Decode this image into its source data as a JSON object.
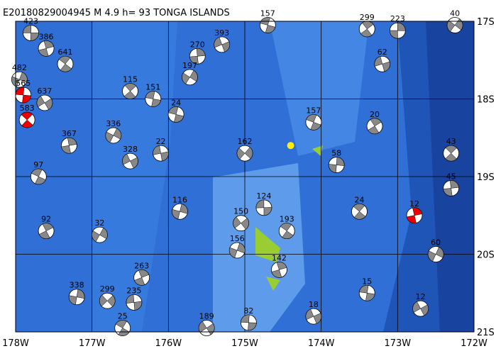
{
  "map": {
    "title": "E20180829004945 M 4.9 h= 93 TONGA ISLANDS",
    "lonlim": [
      -178,
      -172
    ],
    "latlim": [
      -21,
      -17
    ],
    "lonticks": [
      {
        "value": -178,
        "label": "178W"
      },
      {
        "value": -177,
        "label": "177W"
      },
      {
        "value": -176,
        "label": "176W"
      },
      {
        "value": -175,
        "label": "175W"
      },
      {
        "value": -174,
        "label": "174W"
      },
      {
        "value": -173,
        "label": "173W"
      },
      {
        "value": -172,
        "label": "172W"
      }
    ],
    "latticks": [
      {
        "value": -17,
        "label": "17S"
      },
      {
        "value": -18,
        "label": "18S"
      },
      {
        "value": -19,
        "label": "19S"
      },
      {
        "value": -20,
        "label": "20S"
      },
      {
        "value": -21,
        "label": "21S"
      }
    ],
    "epicenter": {
      "lon": -174.4,
      "lat": -18.6,
      "color": "#ffee00"
    },
    "events": [
      {
        "lon": -177.8,
        "lat": -17.15,
        "depth": "423",
        "color": "#888888"
      },
      {
        "lon": -177.35,
        "lat": -17.55,
        "depth": "641",
        "color": "#888888"
      },
      {
        "lon": -177.6,
        "lat": -17.35,
        "depth": "386",
        "color": "#888888"
      },
      {
        "lon": -177.95,
        "lat": -17.75,
        "depth": "482",
        "color": "#888888"
      },
      {
        "lon": -177.62,
        "lat": -18.05,
        "depth": "637",
        "color": "#888888"
      },
      {
        "lon": -177.9,
        "lat": -17.95,
        "depth": "565",
        "color": "#ee0000"
      },
      {
        "lon": -177.85,
        "lat": -18.27,
        "depth": "583",
        "color": "#ee0000"
      },
      {
        "lon": -177.3,
        "lat": -18.6,
        "depth": "367",
        "color": "#888888"
      },
      {
        "lon": -176.72,
        "lat": -18.47,
        "depth": "336",
        "color": "#888888"
      },
      {
        "lon": -176.5,
        "lat": -18.8,
        "depth": "328",
        "color": "#888888"
      },
      {
        "lon": -176.2,
        "lat": -18.0,
        "depth": "151",
        "color": "#888888"
      },
      {
        "lon": -176.5,
        "lat": -17.9,
        "depth": "115",
        "color": "#888888"
      },
      {
        "lon": -175.62,
        "lat": -17.45,
        "depth": "270",
        "color": "#888888"
      },
      {
        "lon": -175.72,
        "lat": -17.72,
        "depth": "197",
        "color": "#888888"
      },
      {
        "lon": -175.3,
        "lat": -17.3,
        "depth": "393",
        "color": "#888888"
      },
      {
        "lon": -174.7,
        "lat": -17.05,
        "depth": "157",
        "color": "#888888"
      },
      {
        "lon": -173.4,
        "lat": -17.1,
        "depth": "299",
        "color": "#888888"
      },
      {
        "lon": -173.0,
        "lat": -17.12,
        "depth": "223",
        "color": "#888888"
      },
      {
        "lon": -172.25,
        "lat": -17.05,
        "depth": "40",
        "color": "#888888"
      },
      {
        "lon": -173.2,
        "lat": -17.55,
        "depth": "62",
        "color": "#888888"
      },
      {
        "lon": -174.1,
        "lat": -18.3,
        "depth": "157",
        "color": "#888888"
      },
      {
        "lon": -173.3,
        "lat": -18.35,
        "depth": "20",
        "color": "#888888"
      },
      {
        "lon": -173.8,
        "lat": -18.85,
        "depth": "58",
        "color": "#888888"
      },
      {
        "lon": -175.0,
        "lat": -18.7,
        "depth": "162",
        "color": "#888888"
      },
      {
        "lon": -176.1,
        "lat": -18.7,
        "depth": "22",
        "color": "#888888"
      },
      {
        "lon": -177.7,
        "lat": -19.0,
        "depth": "97",
        "color": "#888888"
      },
      {
        "lon": -177.6,
        "lat": -19.7,
        "depth": "92",
        "color": "#888888"
      },
      {
        "lon": -177.2,
        "lat": -20.55,
        "depth": "338",
        "color": "#888888"
      },
      {
        "lon": -176.8,
        "lat": -20.6,
        "depth": "299",
        "color": "#888888"
      },
      {
        "lon": -176.45,
        "lat": -20.62,
        "depth": "235",
        "color": "#888888"
      },
      {
        "lon": -176.6,
        "lat": -20.95,
        "depth": "25",
        "color": "#888888"
      },
      {
        "lon": -176.35,
        "lat": -20.3,
        "depth": "263",
        "color": "#888888"
      },
      {
        "lon": -175.85,
        "lat": -19.45,
        "depth": "116",
        "color": "#888888"
      },
      {
        "lon": -175.05,
        "lat": -19.6,
        "depth": "150",
        "color": "#888888"
      },
      {
        "lon": -174.75,
        "lat": -19.4,
        "depth": "124",
        "color": "#888888"
      },
      {
        "lon": -174.45,
        "lat": -19.7,
        "depth": "193",
        "color": "#888888"
      },
      {
        "lon": -174.55,
        "lat": -20.2,
        "depth": "142",
        "color": "#888888"
      },
      {
        "lon": -175.1,
        "lat": -19.95,
        "depth": "156",
        "color": "#888888"
      },
      {
        "lon": -175.5,
        "lat": -20.95,
        "depth": "189",
        "color": "#888888"
      },
      {
        "lon": -174.95,
        "lat": -20.88,
        "depth": "82",
        "color": "#888888"
      },
      {
        "lon": -173.5,
        "lat": -19.45,
        "depth": "24",
        "color": "#888888"
      },
      {
        "lon": -172.78,
        "lat": -19.5,
        "depth": "12",
        "color": "#ee0000"
      },
      {
        "lon": -172.5,
        "lat": -20.0,
        "depth": "60",
        "color": "#888888"
      },
      {
        "lon": -172.7,
        "lat": -20.7,
        "depth": "12",
        "color": "#888888"
      },
      {
        "lon": -173.4,
        "lat": -20.5,
        "depth": "15",
        "color": "#888888"
      },
      {
        "lon": -172.3,
        "lat": -18.7,
        "depth": "43",
        "color": "#888888"
      },
      {
        "lon": -172.3,
        "lat": -19.15,
        "depth": "45",
        "color": "#888888"
      },
      {
        "lon": -176.9,
        "lat": -19.75,
        "depth": "32",
        "color": "#888888"
      },
      {
        "lon": -174.1,
        "lat": -20.8,
        "depth": "18",
        "color": "#888888"
      },
      {
        "lon": -175.9,
        "lat": -18.2,
        "depth": "24",
        "color": "#888888"
      }
    ]
  }
}
